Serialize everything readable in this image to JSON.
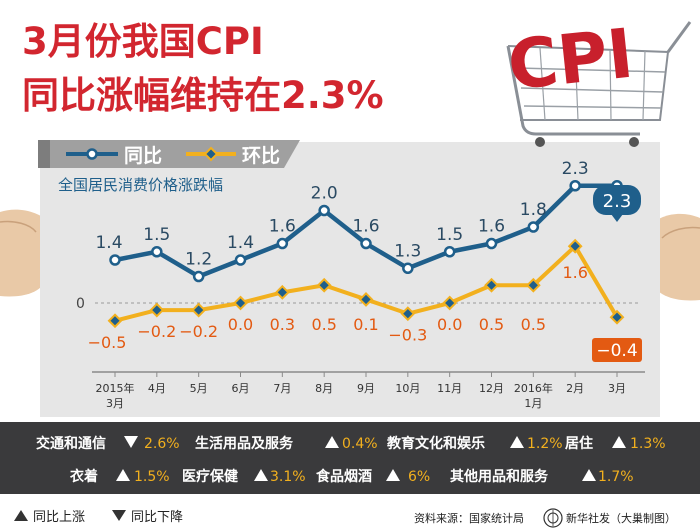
{
  "header": {
    "title_line1": "3月份我国CPI",
    "title_line2": "同比涨幅维持在2.3%"
  },
  "legend": {
    "yoy": "同比",
    "mom": "环比"
  },
  "chart_data": {
    "type": "line",
    "subtitle": "全国居民消费价格涨跌幅",
    "categories": [
      "2015年\n3月",
      "4月",
      "5月",
      "6月",
      "7月",
      "8月",
      "9月",
      "10月",
      "11月",
      "12月",
      "2016年\n1月",
      "2月",
      "3月"
    ],
    "series": [
      {
        "name": "同比",
        "color": "#1f5f8b",
        "values": [
          1.4,
          1.5,
          1.2,
          1.4,
          1.6,
          2.0,
          1.6,
          1.3,
          1.5,
          1.6,
          1.8,
          2.3,
          2.3
        ],
        "labels": [
          "1.4",
          "1.5",
          "1.2",
          "1.4",
          "1.6",
          "2.0",
          "1.6",
          "1.3",
          "1.5",
          "1.6",
          "1.8",
          "2.3",
          "2.3"
        ]
      },
      {
        "name": "环比",
        "color": "#f2b01e",
        "values": [
          -0.5,
          -0.2,
          -0.2,
          0.0,
          0.3,
          0.5,
          0.1,
          -0.3,
          0.0,
          0.5,
          0.5,
          1.6,
          -0.4
        ],
        "labels": [
          "−0.5",
          "−0.2",
          "−0.2",
          "0.0",
          "0.3",
          "0.5",
          "0.1",
          "−0.3",
          "0.0",
          "0.5",
          "0.5",
          "1.6",
          "−0.4"
        ]
      }
    ],
    "zero_label": "0",
    "label_color_mom": "#e35a12"
  },
  "categories_panel": {
    "row1": [
      {
        "name": "交通和通信",
        "dir": "down",
        "value": "2.6%"
      },
      {
        "name": "生活用品及服务",
        "dir": "up",
        "value": "0.4%"
      },
      {
        "name": "教育文化和娱乐",
        "dir": "up",
        "value": "1.2%"
      },
      {
        "name": "居住",
        "dir": "up",
        "value": "1.3%"
      }
    ],
    "row2": [
      {
        "name": "衣着",
        "dir": "up",
        "value": "1.5%"
      },
      {
        "name": "医疗保健",
        "dir": "up",
        "value": "3.1%"
      },
      {
        "name": "食品烟酒",
        "dir": "up",
        "value": "6%"
      },
      {
        "name": "其他用品和服务",
        "dir": "up",
        "value": "1.7%"
      }
    ]
  },
  "footer": {
    "up_legend": "同比上涨",
    "down_legend": "同比下降",
    "source": "资料来源：国家统计局",
    "credit": "新华社发（大巢制图）"
  },
  "logo": {
    "letters": "CPI"
  }
}
